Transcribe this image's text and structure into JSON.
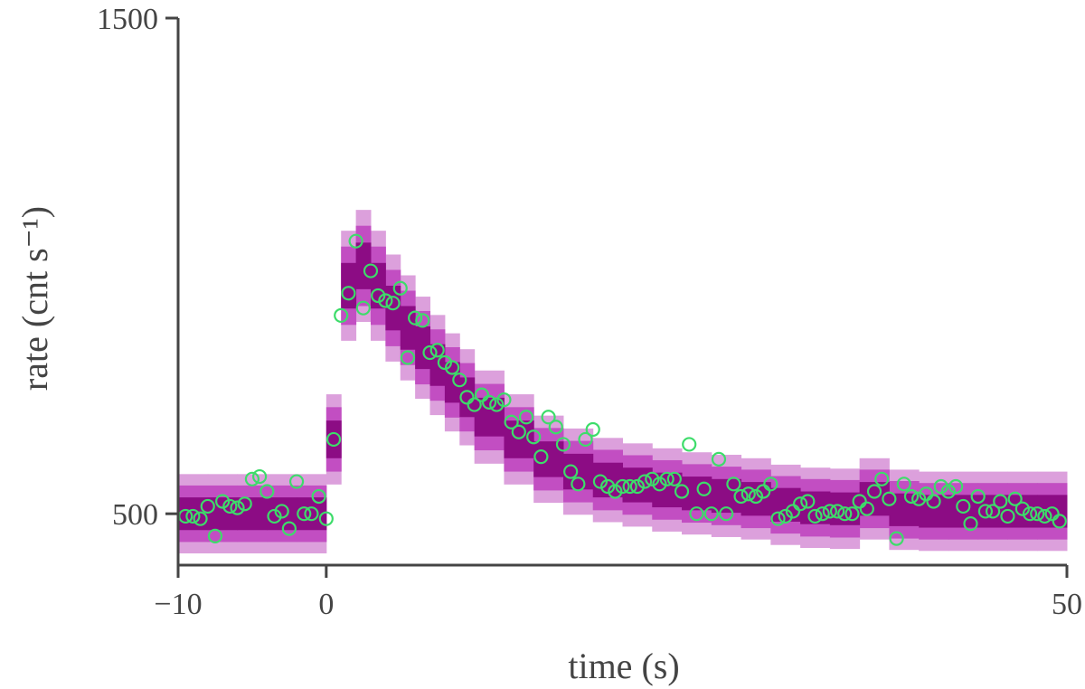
{
  "chart_data": {
    "type": "scatter",
    "xlabel": "time (s)",
    "ylabel": "rate (cnt s⁻¹)",
    "xlim": [
      -10,
      50
    ],
    "ylim": [
      400,
      1500
    ],
    "xticks": [
      {
        "value": -10,
        "label": "−10"
      },
      0,
      50
    ],
    "yticks": [
      500,
      1500
    ],
    "band_edges": [
      -10,
      -8,
      -6,
      -4,
      -2,
      0,
      1,
      2,
      3,
      4,
      5,
      6,
      7,
      8,
      9,
      10,
      12,
      14,
      16,
      18,
      20,
      22,
      24,
      26,
      28,
      30,
      32,
      34,
      36,
      38,
      40,
      42,
      44,
      46,
      48,
      50
    ],
    "bands": [
      {
        "color": "#dca0dc",
        "lower": [
          420,
          420,
          420,
          420,
          420,
          559,
          849,
          887,
          849,
          807,
          769,
          732,
          699,
          666,
          638,
          601,
          559,
          522,
          498,
          483,
          474,
          464,
          458,
          453,
          448,
          437,
          431,
          429,
          448,
          427,
          425,
          425,
          425,
          425,
          425
        ],
        "upper": [
          580,
          580,
          580,
          580,
          580,
          741,
          1071,
          1113,
          1071,
          1023,
          981,
          938,
          901,
          864,
          832,
          789,
          741,
          698,
          672,
          653,
          642,
          632,
          624,
          619,
          612,
          599,
          593,
          591,
          612,
          589,
          585,
          585,
          585,
          585,
          585
        ]
      },
      {
        "color": "#c24ec2",
        "lower": [
          443,
          443,
          443,
          443,
          443,
          585,
          881,
          919,
          881,
          838,
          800,
          761,
          728,
          694,
          666,
          628,
          585,
          547,
          523,
          507,
          498,
          488,
          482,
          477,
          471,
          460,
          454,
          452,
          471,
          450,
          448,
          448,
          448,
          448,
          448
        ],
        "upper": [
          557,
          557,
          557,
          557,
          557,
          715,
          1039,
          1081,
          1039,
          992,
          950,
          909,
          872,
          836,
          804,
          762,
          715,
          673,
          647,
          629,
          618,
          608,
          600,
          595,
          589,
          576,
          570,
          568,
          589,
          566,
          562,
          562,
          562,
          562,
          562
        ]
      },
      {
        "color": "#8c0c84",
        "lower": [
          467,
          467,
          467,
          467,
          467,
          612,
          914,
          953,
          914,
          870,
          831,
          792,
          758,
          724,
          695,
          656,
          612,
          574,
          549,
          533,
          523,
          513,
          507,
          502,
          496,
          484,
          479,
          477,
          496,
          475,
          472,
          472,
          472,
          472,
          472
        ],
        "upper": [
          533,
          533,
          533,
          533,
          533,
          688,
          1006,
          1047,
          1006,
          960,
          919,
          878,
          842,
          806,
          775,
          734,
          688,
          646,
          621,
          603,
          593,
          583,
          575,
          570,
          564,
          552,
          545,
          543,
          564,
          541,
          538,
          538,
          538,
          538,
          538
        ]
      }
    ],
    "color": "#3ddc6a",
    "x": [
      -9.5,
      -9,
      -8.5,
      -8,
      -7.5,
      -7,
      -6.5,
      -6,
      -5.5,
      -5,
      -4.5,
      -4,
      -3.5,
      -3,
      -2.5,
      -2,
      -1.5,
      -1,
      -0.5,
      0,
      0.5,
      1,
      1.5,
      2,
      2.5,
      3,
      3.5,
      4,
      4.5,
      5,
      5.5,
      6,
      6.5,
      7,
      7.5,
      8,
      8.5,
      9,
      9.5,
      10,
      10.5,
      11,
      11.5,
      12,
      12.5,
      13,
      13.5,
      14,
      14.5,
      15,
      15.5,
      16,
      16.5,
      17,
      17.5,
      18,
      18.5,
      19,
      19.5,
      20,
      20.5,
      21,
      21.5,
      22,
      22.5,
      23,
      23.5,
      24,
      24.5,
      25,
      25.5,
      26,
      26.5,
      27,
      27.5,
      28,
      28.5,
      29,
      29.5,
      30,
      30.5,
      31,
      31.5,
      32,
      32.5,
      33,
      33.5,
      34,
      34.5,
      35,
      35.5,
      36,
      36.5,
      37,
      37.5,
      38,
      38.5,
      39,
      39.5,
      40,
      40.5,
      41,
      41.5,
      42,
      42.5,
      43,
      43.5,
      44,
      44.5,
      45,
      45.5,
      46,
      46.5,
      47,
      47.5,
      48,
      48.5,
      49,
      49.5
    ],
    "values": [
      495,
      495,
      490,
      515,
      455,
      525,
      515,
      512,
      520,
      570,
      575,
      545,
      495,
      505,
      470,
      565,
      500,
      500,
      535,
      490,
      650,
      900,
      945,
      1050,
      915,
      990,
      940,
      930,
      925,
      955,
      815,
      895,
      890,
      825,
      830,
      805,
      795,
      770,
      735,
      720,
      740,
      725,
      720,
      730,
      685,
      665,
      695,
      655,
      615,
      695,
      675,
      640,
      585,
      560,
      650,
      670,
      565,
      555,
      545,
      555,
      555,
      555,
      565,
      570,
      560,
      570,
      570,
      545,
      640,
      500,
      550,
      500,
      610,
      500,
      560,
      535,
      540,
      535,
      545,
      560,
      490,
      495,
      505,
      520,
      525,
      495,
      500,
      505,
      505,
      500,
      500,
      525,
      510,
      545,
      570,
      530,
      450,
      560,
      535,
      530,
      540,
      525,
      555,
      545,
      555,
      515,
      480,
      535,
      505,
      505,
      525,
      495,
      530,
      510,
      500,
      500,
      495,
      500,
      485
    ]
  }
}
